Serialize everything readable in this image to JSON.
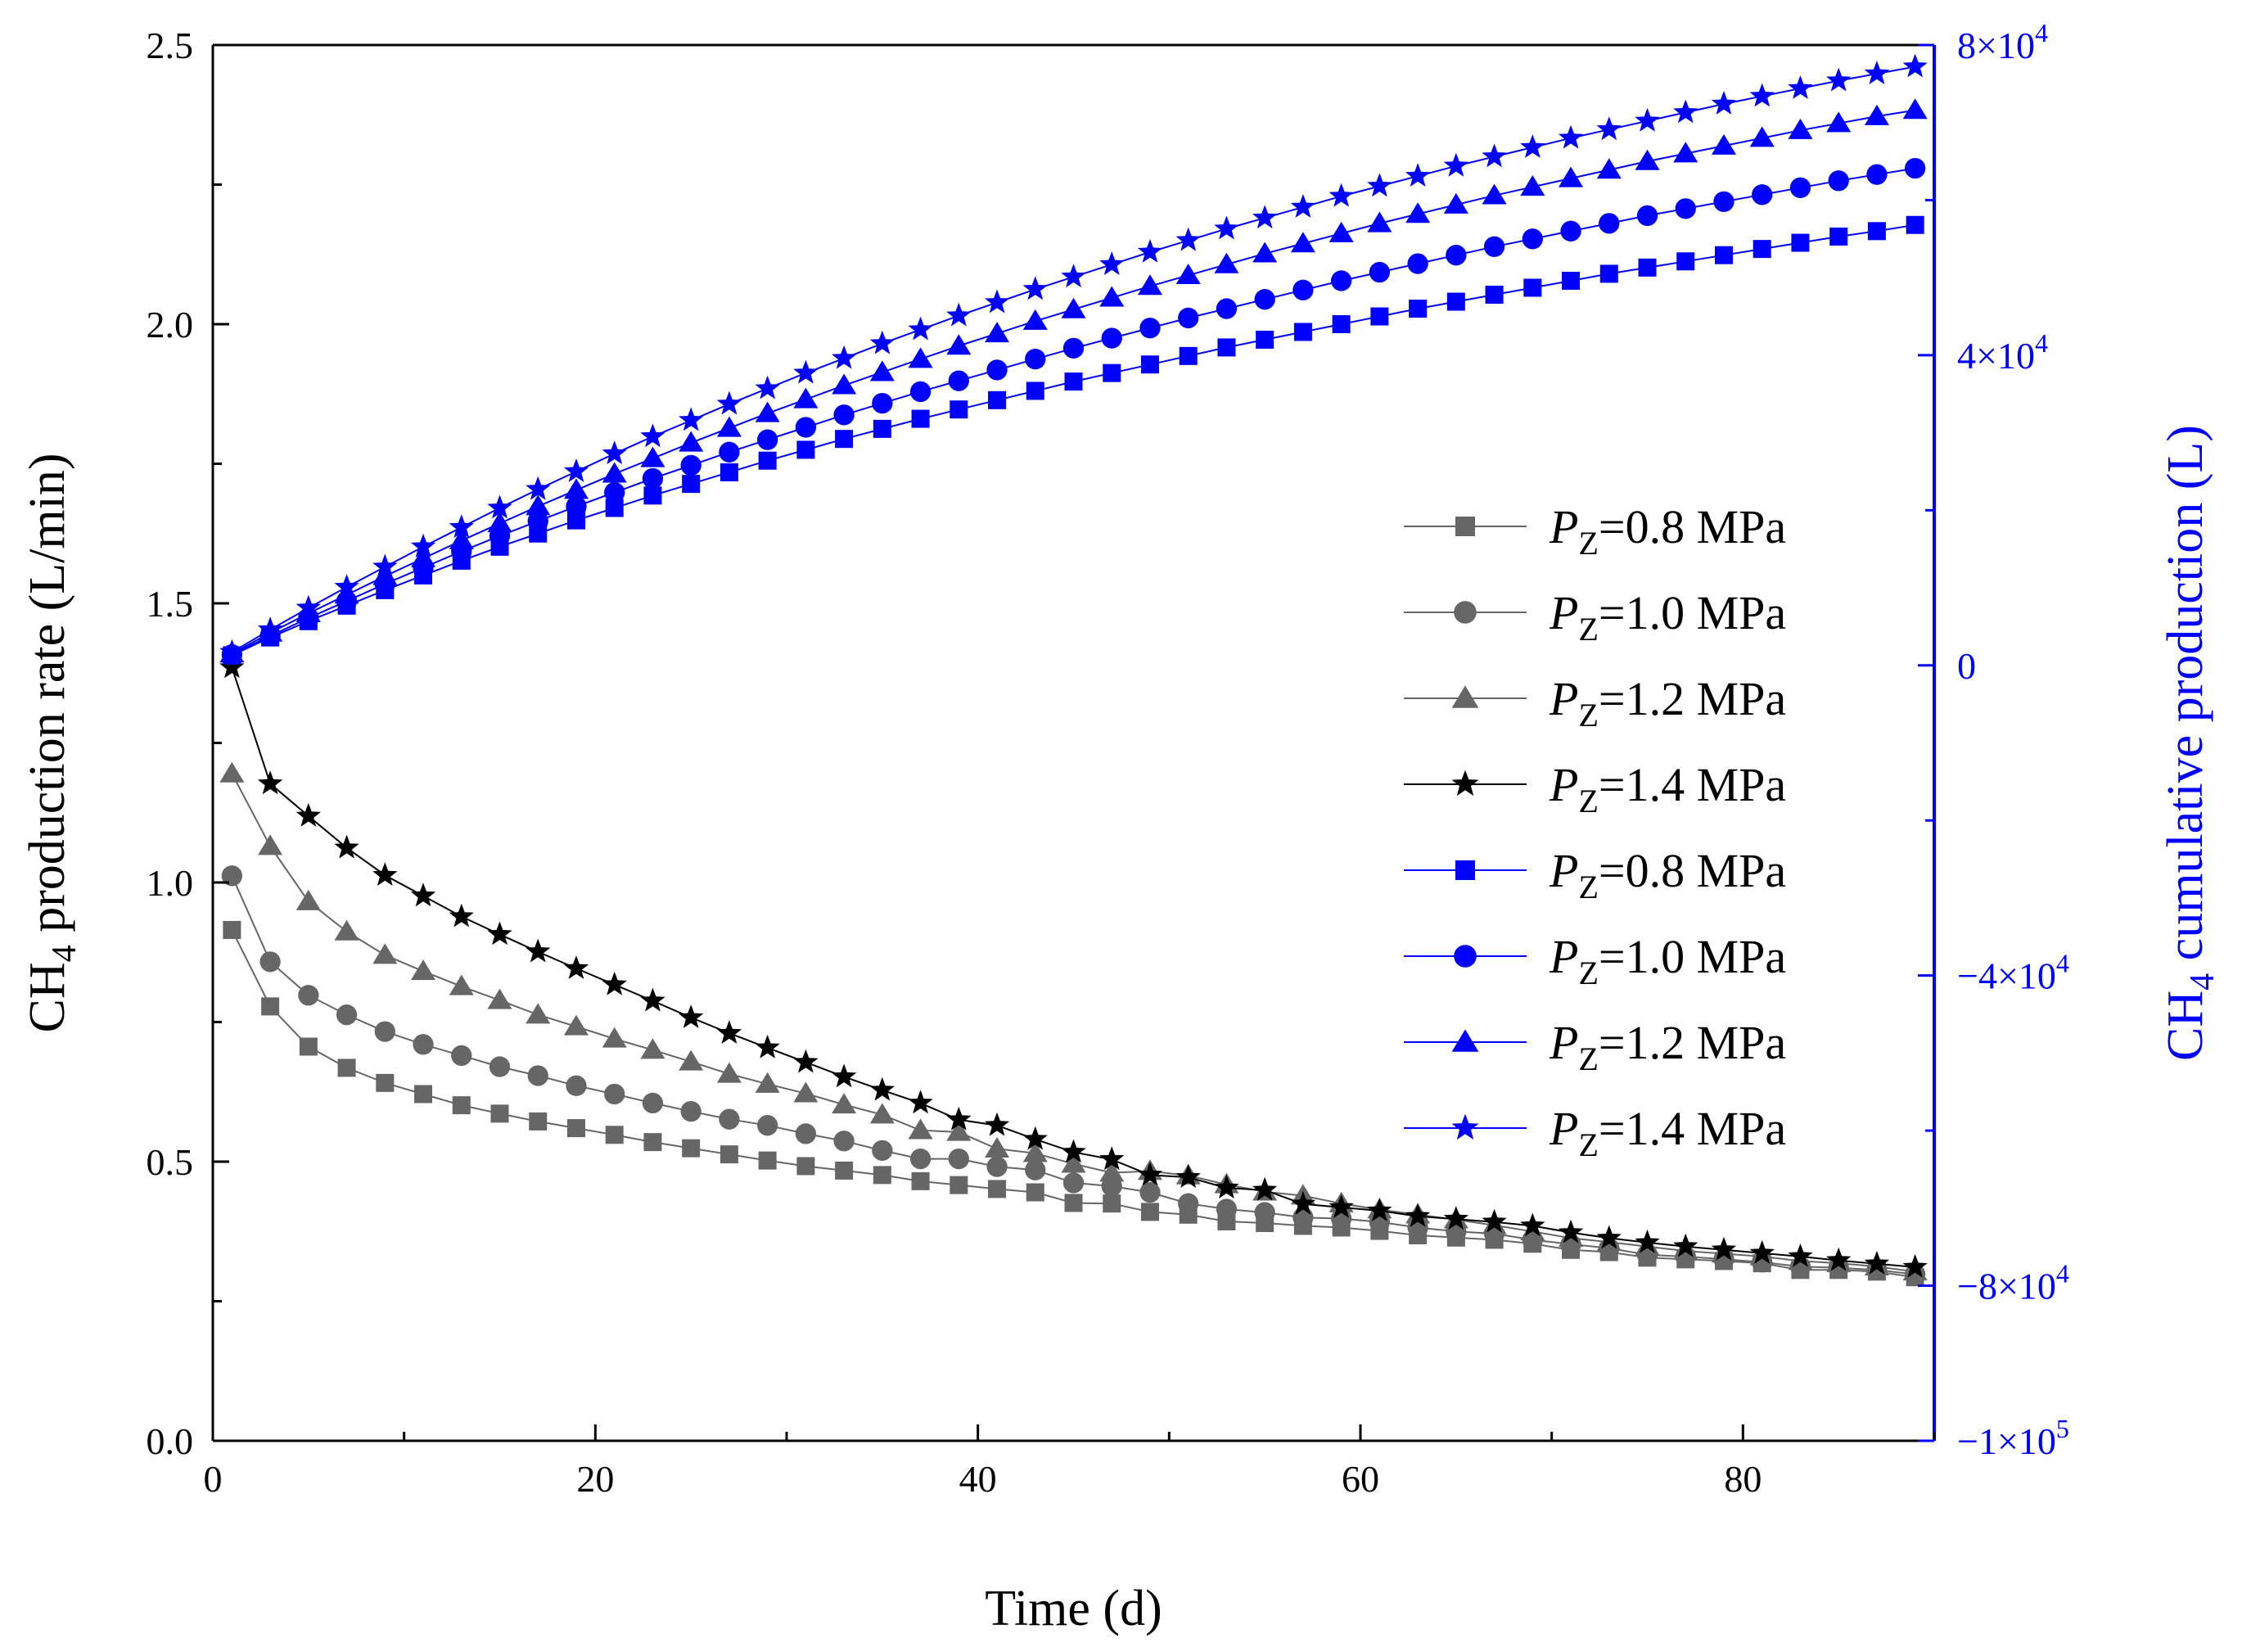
{
  "chart_data": {
    "type": "line",
    "title": "",
    "xlabel": "Time (d)",
    "ylabel_left": {
      "prefix": "CH",
      "sub": "4",
      "rest": " production rate (L/min)"
    },
    "ylabel_right": {
      "prefix": "CH",
      "sub": "4",
      "rest": " cumulative production (L)"
    },
    "xlim": [
      0,
      90
    ],
    "ylim_left": [
      0,
      2.5
    ],
    "ylim_right": [
      -100000,
      80000
    ],
    "x_ticks": [
      {
        "value": 0,
        "label": "0"
      },
      {
        "value": 20,
        "label": "20"
      },
      {
        "value": 40,
        "label": "40"
      },
      {
        "value": 60,
        "label": "60"
      },
      {
        "value": 80,
        "label": "80"
      }
    ],
    "x_minor_ticks": [
      10,
      30,
      50,
      70,
      90
    ],
    "y_left_ticks": [
      {
        "value": 0.0,
        "label": "0.0"
      },
      {
        "value": 0.5,
        "label": "0.5"
      },
      {
        "value": 1.0,
        "label": "1.0"
      },
      {
        "value": 1.5,
        "label": "1.5"
      },
      {
        "value": 2.0,
        "label": "2.0"
      },
      {
        "value": 2.5,
        "label": "2.5"
      }
    ],
    "y_left_minor_ticks": [
      0.25,
      0.75,
      1.25,
      1.75,
      2.25
    ],
    "y_right_ticks": [
      {
        "value": -100000,
        "label": "−1×10",
        "exp": "5"
      },
      {
        "value": -80000,
        "label": "−8×10",
        "exp": "4"
      },
      {
        "value": -40000,
        "label": "−4×10",
        "exp": "4"
      },
      {
        "value": 0,
        "label": "0",
        "exp": ""
      },
      {
        "value": 40000,
        "label": "4×10",
        "exp": "4"
      },
      {
        "value": 80000,
        "label": "8×10",
        "exp": "4"
      }
    ],
    "y_right_minor_ticks": [
      -60000,
      -20000,
      20000,
      60000
    ],
    "x": [
      1,
      3,
      5,
      7,
      9,
      11,
      13,
      15,
      17,
      19,
      21,
      23,
      25,
      27,
      29,
      31,
      33,
      35,
      37,
      39,
      41,
      43,
      45,
      47,
      49,
      51,
      53,
      55,
      57,
      59,
      61,
      63,
      65,
      67,
      69,
      71,
      73,
      75,
      77,
      79,
      81,
      83,
      85,
      87,
      89
    ],
    "series": [
      {
        "name": "PZ=0.8 MPa",
        "legend_label": "=0.8 MPa",
        "axis": "left",
        "color": "#666666",
        "marker": "square",
        "values": [
          0.915,
          0.778,
          0.706,
          0.668,
          0.641,
          0.621,
          0.601,
          0.586,
          0.572,
          0.56,
          0.548,
          0.535,
          0.524,
          0.513,
          0.502,
          0.492,
          0.484,
          0.476,
          0.465,
          0.458,
          0.451,
          0.445,
          0.426,
          0.425,
          0.41,
          0.405,
          0.393,
          0.39,
          0.385,
          0.382,
          0.376,
          0.368,
          0.364,
          0.36,
          0.353,
          0.342,
          0.338,
          0.328,
          0.325,
          0.322,
          0.318,
          0.306,
          0.306,
          0.303,
          0.293
        ]
      },
      {
        "name": "PZ=1.0 MPa",
        "legend_label": "=1.0 MPa",
        "axis": "left",
        "color": "#666666",
        "marker": "circle",
        "values": [
          1.012,
          0.858,
          0.798,
          0.763,
          0.733,
          0.71,
          0.69,
          0.67,
          0.654,
          0.636,
          0.621,
          0.605,
          0.59,
          0.576,
          0.565,
          0.55,
          0.537,
          0.52,
          0.505,
          0.505,
          0.491,
          0.485,
          0.462,
          0.456,
          0.445,
          0.425,
          0.415,
          0.409,
          0.4,
          0.398,
          0.392,
          0.382,
          0.375,
          0.371,
          0.36,
          0.352,
          0.345,
          0.333,
          0.33,
          0.325,
          0.32,
          0.312,
          0.31,
          0.306,
          0.298
        ]
      },
      {
        "name": "PZ=1.2 MPa",
        "legend_label": "=1.2 MPa",
        "axis": "left",
        "color": "#666666",
        "marker": "triangle",
        "values": [
          1.195,
          1.065,
          0.966,
          0.912,
          0.87,
          0.841,
          0.814,
          0.789,
          0.763,
          0.742,
          0.72,
          0.7,
          0.679,
          0.657,
          0.639,
          0.622,
          0.602,
          0.584,
          0.556,
          0.553,
          0.523,
          0.515,
          0.496,
          0.48,
          0.483,
          0.475,
          0.459,
          0.446,
          0.439,
          0.425,
          0.414,
          0.405,
          0.396,
          0.386,
          0.375,
          0.363,
          0.356,
          0.348,
          0.34,
          0.335,
          0.33,
          0.322,
          0.318,
          0.312,
          0.303
        ]
      },
      {
        "name": "PZ=1.4 MPa",
        "legend_label": "=1.4 MPa",
        "axis": "left",
        "color": "#000000",
        "marker": "star",
        "values": [
          1.385,
          1.177,
          1.119,
          1.062,
          1.013,
          0.976,
          0.939,
          0.907,
          0.876,
          0.846,
          0.817,
          0.788,
          0.758,
          0.73,
          0.704,
          0.678,
          0.652,
          0.628,
          0.605,
          0.575,
          0.565,
          0.54,
          0.517,
          0.504,
          0.476,
          0.472,
          0.453,
          0.449,
          0.424,
          0.418,
          0.412,
          0.402,
          0.397,
          0.392,
          0.385,
          0.373,
          0.363,
          0.355,
          0.348,
          0.342,
          0.336,
          0.33,
          0.323,
          0.317,
          0.311
        ]
      },
      {
        "name": "PZ=0.8 MPa (cumulative)",
        "legend_label": "=0.8 MPa",
        "axis": "right",
        "color": "#0000ff",
        "marker": "square",
        "values": [
          1300,
          3600,
          5700,
          7700,
          9700,
          11600,
          13500,
          15300,
          17000,
          18700,
          20300,
          21900,
          23400,
          24900,
          26400,
          27800,
          29200,
          30500,
          31800,
          33000,
          34200,
          35400,
          36600,
          37700,
          38800,
          39900,
          41000,
          42000,
          43000,
          44000,
          45000,
          46000,
          46900,
          47800,
          48700,
          49600,
          50500,
          51300,
          52100,
          52900,
          53700,
          54500,
          55300,
          56000,
          56800
        ]
      },
      {
        "name": "PZ=1.0 MPa (cumulative)",
        "legend_label": "=1.0 MPa",
        "axis": "right",
        "color": "#0000ff",
        "marker": "circle",
        "values": [
          1400,
          3800,
          6100,
          8300,
          10500,
          12600,
          14700,
          16700,
          18600,
          20500,
          22300,
          24100,
          25800,
          27500,
          29100,
          30700,
          32300,
          33800,
          35300,
          36700,
          38100,
          39500,
          40900,
          42200,
          43500,
          44800,
          46000,
          47200,
          48400,
          49600,
          50700,
          51800,
          52900,
          54000,
          55000,
          56000,
          57000,
          58000,
          58900,
          59800,
          60700,
          61600,
          62500,
          63300,
          64100
        ]
      },
      {
        "name": "PZ=1.2 MPa (cumulative)",
        "legend_label": "=1.2 MPa",
        "axis": "right",
        "color": "#0000ff",
        "marker": "triangle",
        "values": [
          1500,
          4200,
          6700,
          9100,
          11500,
          13800,
          16100,
          18300,
          20500,
          22600,
          24700,
          26700,
          28700,
          30600,
          32500,
          34300,
          36100,
          37800,
          39500,
          41200,
          42800,
          44400,
          45900,
          47400,
          48900,
          50300,
          51700,
          53100,
          54400,
          55700,
          57000,
          58200,
          59400,
          60600,
          61700,
          62800,
          63900,
          65000,
          66000,
          67000,
          68000,
          69000,
          69900,
          70800,
          71600
        ]
      },
      {
        "name": "PZ=1.4 MPa (cumulative)",
        "legend_label": "=1.4 MPa",
        "axis": "right",
        "color": "#0000ff",
        "marker": "star",
        "values": [
          1700,
          4600,
          7400,
          10100,
          12700,
          15300,
          17800,
          20300,
          22700,
          25000,
          27300,
          29500,
          31600,
          33700,
          35700,
          37700,
          39600,
          41500,
          43300,
          45100,
          46800,
          48500,
          50100,
          51700,
          53300,
          54800,
          56300,
          57700,
          59100,
          60500,
          61800,
          63100,
          64400,
          65600,
          66800,
          68000,
          69100,
          70200,
          71300,
          72400,
          73400,
          74400,
          75400,
          76300,
          77200
        ]
      }
    ],
    "legend": {
      "placement": "center-right",
      "var_main": "P",
      "var_sub": "Z"
    },
    "grid": false
  }
}
